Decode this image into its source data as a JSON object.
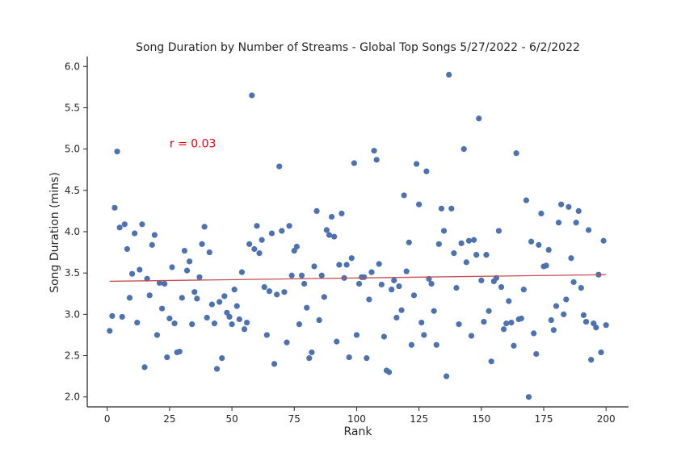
{
  "chart_data": {
    "type": "scatter",
    "title": "Song Duration by Number of Streams - Global Top Songs 5/27/2022 - 6/2/2022",
    "xlabel": "Rank",
    "ylabel": "Song Duration (mins)",
    "xlim": [
      -8,
      209
    ],
    "ylim": [
      1.88,
      6.12
    ],
    "xticks": [
      0,
      25,
      50,
      75,
      100,
      125,
      150,
      175,
      200
    ],
    "yticks": [
      2.0,
      2.5,
      3.0,
      3.5,
      4.0,
      4.5,
      5.0,
      5.5,
      6.0
    ],
    "grid": false,
    "annotation": {
      "text": "r = 0.03",
      "x": 25,
      "y": 5.02,
      "color": "#e8000b"
    },
    "point_color": "#4c72b0",
    "fit_color": "#c44e52",
    "fit_line": {
      "x": [
        1,
        200
      ],
      "y": [
        3.4,
        3.48
      ]
    },
    "series": [
      {
        "x": [
          1,
          2,
          3,
          4,
          5,
          6,
          7,
          8,
          9,
          10,
          11,
          12,
          13,
          14,
          15,
          16,
          17,
          18,
          19,
          20,
          21,
          22,
          23,
          24,
          25,
          26,
          27,
          28,
          29,
          30,
          31,
          32,
          33,
          34,
          35,
          36,
          37,
          38,
          39,
          40,
          41,
          42,
          43,
          44,
          45,
          46,
          47,
          48,
          49,
          50,
          51,
          52,
          53,
          54,
          55,
          56,
          57,
          58,
          59,
          60,
          61,
          62,
          63,
          64,
          65,
          66,
          67,
          68,
          69,
          70,
          71,
          72,
          73,
          74,
          75,
          76,
          77,
          78,
          79,
          80,
          81,
          82,
          83,
          84,
          85,
          86,
          87,
          88,
          89,
          90,
          91,
          92,
          93,
          94,
          95,
          96,
          97,
          98,
          99,
          100,
          101,
          102,
          103,
          104,
          105,
          106,
          107,
          108,
          109,
          110,
          111,
          112,
          113,
          114,
          115,
          116,
          117,
          118,
          119,
          120,
          121,
          122,
          123,
          124,
          125,
          126,
          127,
          128,
          129,
          130,
          131,
          132,
          133,
          134,
          135,
          136,
          137,
          138,
          139,
          140,
          141,
          142,
          143,
          144,
          145,
          146,
          147,
          148,
          149,
          150,
          151,
          152,
          153,
          154,
          155,
          156,
          157,
          158,
          159,
          160,
          161,
          162,
          163,
          164,
          165,
          166,
          167,
          168,
          169,
          170,
          171,
          172,
          173,
          174,
          175,
          176,
          177,
          178,
          179,
          180,
          181,
          182,
          183,
          184,
          185,
          186,
          187,
          188,
          189,
          190,
          191,
          192,
          193,
          194,
          195,
          196,
          197,
          198,
          199,
          200
        ],
        "y": [
          2.8,
          2.98,
          4.29,
          4.97,
          4.05,
          2.97,
          4.09,
          3.79,
          3.2,
          3.49,
          3.98,
          2.9,
          3.54,
          4.09,
          2.36,
          3.43,
          3.23,
          3.84,
          3.96,
          2.75,
          3.38,
          3.07,
          3.37,
          2.48,
          2.95,
          3.57,
          2.89,
          2.54,
          2.55,
          3.2,
          3.77,
          3.53,
          3.64,
          2.88,
          3.27,
          3.19,
          3.45,
          3.85,
          4.06,
          2.96,
          3.75,
          3.12,
          2.89,
          2.34,
          3.15,
          2.47,
          3.22,
          3.02,
          2.97,
          2.88,
          3.3,
          3.1,
          2.94,
          3.51,
          2.82,
          2.9,
          3.85,
          5.65,
          3.79,
          4.07,
          3.74,
          3.9,
          3.33,
          2.75,
          3.28,
          3.98,
          2.4,
          3.24,
          4.79,
          4.01,
          3.27,
          2.66,
          4.07,
          3.47,
          3.77,
          3.82,
          2.88,
          3.47,
          3.37,
          3.08,
          2.47,
          2.54,
          3.58,
          4.25,
          2.93,
          3.47,
          3.21,
          4.02,
          3.96,
          4.18,
          3.94,
          2.67,
          3.6,
          4.22,
          3.44,
          3.6,
          2.48,
          3.68,
          4.83,
          2.75,
          3.37,
          3.45,
          3.45,
          2.47,
          3.18,
          3.51,
          4.98,
          4.87,
          3.61,
          3.36,
          2.73,
          2.32,
          2.3,
          3.3,
          3.41,
          2.96,
          3.34,
          3.05,
          4.44,
          3.52,
          3.87,
          2.63,
          3.23,
          4.82,
          4.33,
          2.9,
          2.75,
          4.73,
          3.43,
          3.37,
          3.04,
          2.63,
          3.85,
          4.28,
          4.01,
          2.25,
          5.9,
          4.28,
          3.74,
          3.32,
          2.88,
          3.86,
          5.0,
          3.63,
          3.89,
          2.74,
          3.9,
          3.72,
          5.37,
          3.41,
          2.91,
          3.72,
          3.04,
          2.43,
          3.4,
          3.44,
          4.01,
          3.33,
          2.82,
          2.89,
          3.16,
          2.9,
          2.62,
          4.95,
          2.94,
          2.95,
          3.3,
          4.38,
          2.0,
          3.88,
          2.77,
          2.52,
          3.84,
          4.22,
          3.58,
          3.59,
          3.78,
          2.93,
          2.81,
          3.1,
          4.11,
          4.33,
          3.0,
          3.18,
          4.3,
          3.68,
          3.39,
          4.11,
          4.25,
          3.32,
          2.99,
          2.91,
          4.02,
          2.45,
          2.89,
          2.84,
          3.48,
          2.54,
          3.89,
          2.87
        ]
      }
    ]
  }
}
